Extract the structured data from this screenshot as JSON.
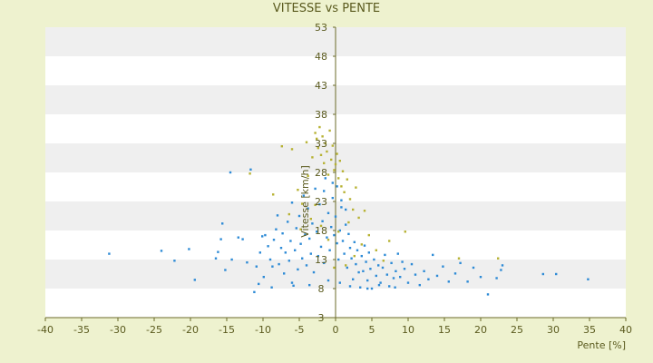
{
  "chart_data": {
    "type": "scatter",
    "title": "VITESSE vs PENTE",
    "xlabel": "Pente [%]",
    "ylabel": "Vitesse [km/h]",
    "xlim": [
      -40,
      40
    ],
    "ylim": [
      3,
      53
    ],
    "x_ticks": [
      -40,
      -35,
      -30,
      -25,
      -20,
      -15,
      -10,
      -5,
      0,
      5,
      10,
      15,
      20,
      25,
      30,
      35,
      40
    ],
    "y_ticks": [
      3,
      8,
      13,
      18,
      23,
      28,
      33,
      38,
      43,
      48,
      53
    ],
    "colors": {
      "background": "#eef2cf",
      "band_light": "#ffffff",
      "band_dark": "#efefef",
      "axis": "#6b6b2a",
      "series_blue": "#2e8bd6",
      "series_yellow": "#b7b233"
    },
    "series": [
      {
        "color": "#2e8bd6",
        "points": [
          [
            -31.2,
            14.0
          ],
          [
            -24.0,
            14.5
          ],
          [
            -22.2,
            12.8
          ],
          [
            -20.2,
            14.8
          ],
          [
            -19.4,
            9.5
          ],
          [
            -16.5,
            13.2
          ],
          [
            -16.2,
            14.3
          ],
          [
            -15.8,
            16.5
          ],
          [
            -15.6,
            19.2
          ],
          [
            -15.2,
            11.2
          ],
          [
            -14.5,
            28.0
          ],
          [
            -14.3,
            13.0
          ],
          [
            -13.4,
            16.8
          ],
          [
            -12.8,
            16.5
          ],
          [
            -12.2,
            12.5
          ],
          [
            -11.7,
            28.5
          ],
          [
            -11.2,
            7.4
          ],
          [
            -10.9,
            11.8
          ],
          [
            -10.4,
            14.2
          ],
          [
            -10.1,
            17.0
          ],
          [
            -9.9,
            10.0
          ],
          [
            -9.7,
            17.2
          ],
          [
            -9.3,
            15.3
          ],
          [
            -9.0,
            13.0
          ],
          [
            -8.7,
            11.8
          ],
          [
            -8.5,
            16.4
          ],
          [
            -8.2,
            18.2
          ],
          [
            -8.0,
            20.6
          ],
          [
            -7.8,
            12.2
          ],
          [
            -7.5,
            15.0
          ],
          [
            -7.3,
            17.5
          ],
          [
            -7.1,
            10.6
          ],
          [
            -6.9,
            14.2
          ],
          [
            -6.6,
            19.5
          ],
          [
            -6.4,
            12.8
          ],
          [
            -6.2,
            16.2
          ],
          [
            -6.0,
            22.8
          ],
          [
            -5.8,
            8.5
          ],
          [
            -5.6,
            14.6
          ],
          [
            -5.4,
            18.4
          ],
          [
            -5.2,
            11.3
          ],
          [
            -5.0,
            20.5
          ],
          [
            -4.8,
            15.7
          ],
          [
            -4.6,
            13.2
          ],
          [
            -4.4,
            24.0
          ],
          [
            -4.2,
            17.3
          ],
          [
            -4.0,
            12.0
          ],
          [
            -3.8,
            21.8
          ],
          [
            -3.6,
            16.6
          ],
          [
            -3.4,
            14.0
          ],
          [
            -3.2,
            19.2
          ],
          [
            -3.0,
            10.8
          ],
          [
            -2.8,
            25.2
          ],
          [
            -2.6,
            17.8
          ],
          [
            -2.4,
            13.6
          ],
          [
            -2.2,
            22.5
          ],
          [
            -2.0,
            15.2
          ],
          [
            -1.8,
            19.6
          ],
          [
            -1.6,
            12.4
          ],
          [
            -1.4,
            27.0
          ],
          [
            -1.2,
            16.8
          ],
          [
            -1.0,
            21.0
          ],
          [
            -0.8,
            14.6
          ],
          [
            -0.6,
            18.6
          ],
          [
            -0.4,
            23.6
          ],
          [
            -0.2,
            17.2
          ],
          [
            0.0,
            20.4
          ],
          [
            0.2,
            15.8
          ],
          [
            0.4,
            13.0
          ],
          [
            0.6,
            18.0
          ],
          [
            0.8,
            22.0
          ],
          [
            1.0,
            16.2
          ],
          [
            1.2,
            14.0
          ],
          [
            1.4,
            19.0
          ],
          [
            1.6,
            11.6
          ],
          [
            1.8,
            17.4
          ],
          [
            2.0,
            15.0
          ],
          [
            2.2,
            13.2
          ],
          [
            2.4,
            9.6
          ],
          [
            2.6,
            16.0
          ],
          [
            2.8,
            12.2
          ],
          [
            3.0,
            14.6
          ],
          [
            3.2,
            10.8
          ],
          [
            3.4,
            8.2
          ],
          [
            3.6,
            13.6
          ],
          [
            3.8,
            11.0
          ],
          [
            4.0,
            15.4
          ],
          [
            4.2,
            12.6
          ],
          [
            4.4,
            9.4
          ],
          [
            4.6,
            14.2
          ],
          [
            4.8,
            11.4
          ],
          [
            5.0,
            8.0
          ],
          [
            5.3,
            13.0
          ],
          [
            5.6,
            10.2
          ],
          [
            5.9,
            12.0
          ],
          [
            6.2,
            9.0
          ],
          [
            6.5,
            11.6
          ],
          [
            6.8,
            13.8
          ],
          [
            7.1,
            10.4
          ],
          [
            7.4,
            8.4
          ],
          [
            7.7,
            12.4
          ],
          [
            8.0,
            9.8
          ],
          [
            8.3,
            11.0
          ],
          [
            8.6,
            14.0
          ],
          [
            8.9,
            10.0
          ],
          [
            9.2,
            12.6
          ],
          [
            9.5,
            11.4
          ],
          [
            10.0,
            9.0
          ],
          [
            10.5,
            12.2
          ],
          [
            11.0,
            10.4
          ],
          [
            11.6,
            8.6
          ],
          [
            12.2,
            11.0
          ],
          [
            12.8,
            9.6
          ],
          [
            13.4,
            13.8
          ],
          [
            14.0,
            10.2
          ],
          [
            14.8,
            11.8
          ],
          [
            15.6,
            9.2
          ],
          [
            16.5,
            10.6
          ],
          [
            17.2,
            12.4
          ],
          [
            18.2,
            9.2
          ],
          [
            19.0,
            11.6
          ],
          [
            20.0,
            10.0
          ],
          [
            21.0,
            7.0
          ],
          [
            22.2,
            9.8
          ],
          [
            22.8,
            11.2
          ],
          [
            23.0,
            12.0
          ],
          [
            28.6,
            10.5
          ],
          [
            30.4,
            10.5
          ],
          [
            34.8,
            9.6
          ],
          [
            -10.6,
            8.8
          ],
          [
            -8.8,
            8.2
          ],
          [
            -6.0,
            9.0
          ],
          [
            -3.6,
            8.6
          ],
          [
            -1.0,
            9.4
          ],
          [
            0.6,
            9.0
          ],
          [
            2.0,
            8.4
          ],
          [
            4.4,
            8.0
          ],
          [
            6.0,
            8.6
          ],
          [
            8.2,
            8.2
          ],
          [
            0.2,
            25.6
          ],
          [
            0.8,
            23.2
          ],
          [
            -0.4,
            26.2
          ],
          [
            1.4,
            21.6
          ],
          [
            -1.6,
            24.8
          ]
        ]
      },
      {
        "color": "#b7b233",
        "points": [
          [
            -7.4,
            32.5
          ],
          [
            -6.0,
            32.0
          ],
          [
            -4.0,
            33.2
          ],
          [
            -3.2,
            30.6
          ],
          [
            -2.8,
            34.8
          ],
          [
            -2.6,
            33.8
          ],
          [
            -2.4,
            32.2
          ],
          [
            -2.2,
            35.8
          ],
          [
            -2.0,
            31.0
          ],
          [
            -1.8,
            34.2
          ],
          [
            -1.6,
            29.6
          ],
          [
            -1.4,
            33.0
          ],
          [
            -1.2,
            31.6
          ],
          [
            -1.0,
            27.6
          ],
          [
            -0.8,
            35.2
          ],
          [
            -0.6,
            30.2
          ],
          [
            -0.4,
            32.6
          ],
          [
            -0.2,
            28.4
          ],
          [
            0.0,
            29.4
          ],
          [
            0.2,
            31.2
          ],
          [
            0.4,
            27.0
          ],
          [
            0.6,
            30.0
          ],
          [
            0.8,
            25.6
          ],
          [
            1.0,
            28.2
          ],
          [
            1.2,
            24.6
          ],
          [
            1.6,
            26.8
          ],
          [
            2.0,
            23.4
          ],
          [
            2.4,
            21.6
          ],
          [
            2.8,
            25.4
          ],
          [
            3.2,
            20.2
          ],
          [
            -3.8,
            27.4
          ],
          [
            -4.6,
            22.6
          ],
          [
            -5.2,
            25.0
          ],
          [
            -3.4,
            20.0
          ],
          [
            -2.0,
            18.8
          ],
          [
            -1.0,
            16.4
          ],
          [
            0.4,
            17.8
          ],
          [
            1.8,
            19.4
          ],
          [
            3.6,
            15.6
          ],
          [
            4.6,
            17.2
          ],
          [
            5.6,
            14.6
          ],
          [
            6.6,
            12.8
          ],
          [
            7.4,
            16.2
          ],
          [
            9.6,
            17.8
          ],
          [
            4.0,
            21.4
          ],
          [
            2.6,
            13.6
          ],
          [
            1.4,
            12.0
          ],
          [
            -0.2,
            11.6
          ],
          [
            17.0,
            13.2
          ],
          [
            22.4,
            13.2
          ],
          [
            -11.8,
            27.8
          ],
          [
            -8.6,
            24.2
          ],
          [
            -6.4,
            20.8
          ],
          [
            -4.8,
            18.2
          ],
          [
            -2.8,
            22.4
          ]
        ]
      }
    ]
  }
}
